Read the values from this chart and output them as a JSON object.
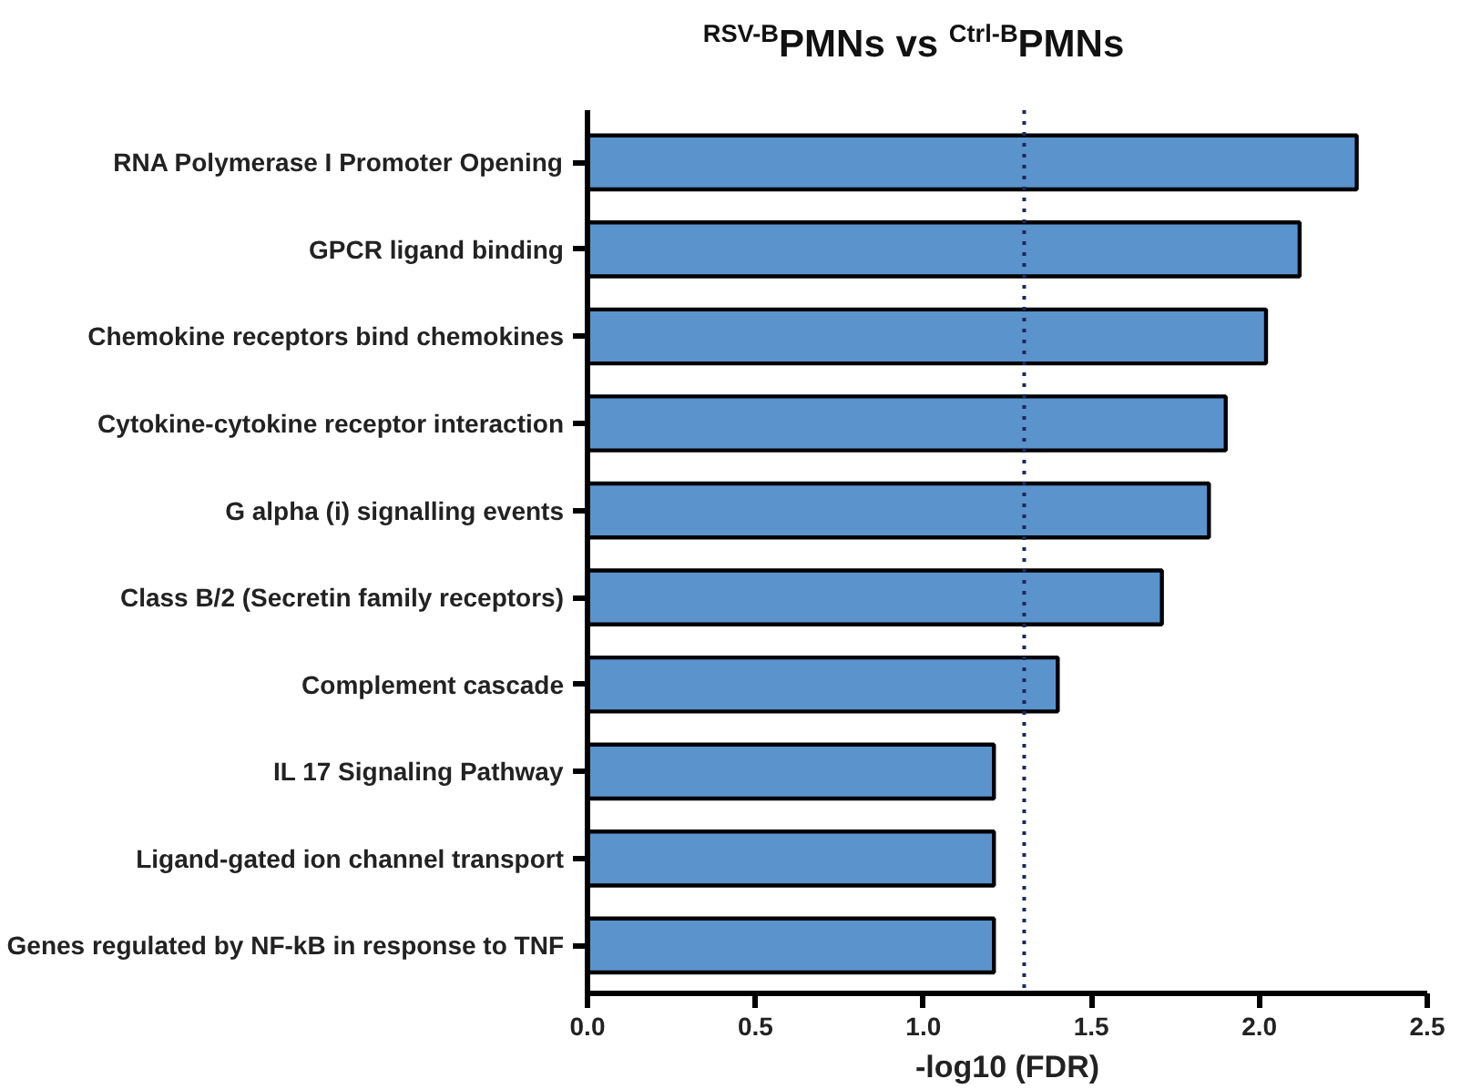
{
  "chart_data": {
    "type": "bar",
    "orientation": "horizontal",
    "title": "$^{RSV-B}$PMNs vs $^{Ctrl-B}$PMNs",
    "xlabel": "-log10 (FDR)",
    "categories": [
      "RNA Polymerase I Promoter Opening",
      "GPCR ligand binding",
      "Chemokine receptors bind chemokines",
      "Cytokine-cytokine receptor interaction",
      "G alpha (i) signalling events",
      "Class B/2 (Secretin family receptors)",
      "Complement cascade",
      "IL 17 Signaling Pathway",
      "Ligand-gated ion channel transport",
      "Genes regulated by NF-kB in response to TNF"
    ],
    "values": [
      2.29,
      2.12,
      2.02,
      1.9,
      1.85,
      1.71,
      1.4,
      1.21,
      1.21,
      1.21
    ],
    "color": "#5b93cc",
    "xlim": [
      0,
      2.5
    ],
    "xticks": [
      {
        "value": 0,
        "label": "0.0"
      },
      {
        "value": 0.5,
        "label": "0.5"
      },
      {
        "value": 1,
        "label": "1.0"
      },
      {
        "value": 1.5,
        "label": "1.5"
      },
      {
        "value": 2,
        "label": "2.0"
      },
      {
        "value": 2.5,
        "label": "2.5"
      }
    ],
    "ref_lines": [
      {
        "axis": "x",
        "value": 1.3,
        "label": null,
        "color": "#1a2a5a",
        "line_style": "dotted"
      }
    ],
    "grid": false
  }
}
